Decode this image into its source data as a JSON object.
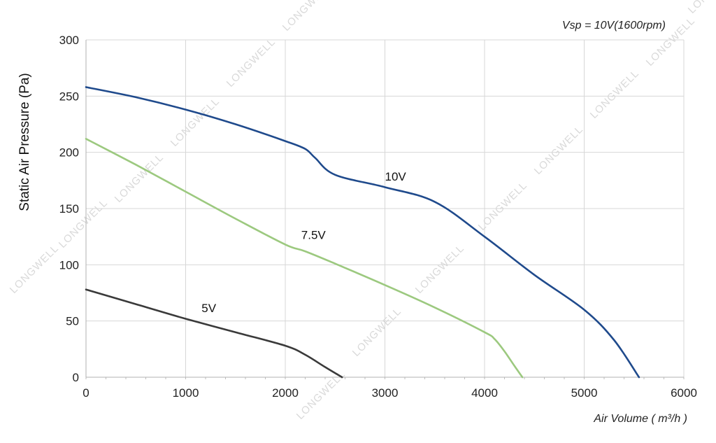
{
  "chart_data": {
    "type": "line",
    "annotation": "Vsp = 10V(1600rpm)",
    "xlabel": "Air Volume ( m³/h )",
    "ylabel": "Static Air Pressure  (Pa)",
    "xlim": [
      0,
      6000
    ],
    "ylim": [
      0,
      300
    ],
    "xticks": [
      0,
      1000,
      2000,
      3000,
      4000,
      5000,
      6000
    ],
    "yticks": [
      0,
      50,
      100,
      150,
      200,
      250,
      300
    ],
    "grid": true,
    "watermark": "LONGWELL",
    "series": [
      {
        "name": "10V",
        "color": "#1f4a8c",
        "x": [
          0,
          500,
          1000,
          1500,
          2000,
          2200,
          2300,
          2500,
          3000,
          3500,
          4000,
          4500,
          5000,
          5300,
          5550
        ],
        "y": [
          258,
          249,
          238,
          225,
          210,
          203,
          195,
          180,
          169,
          156,
          125,
          91,
          60,
          33,
          0
        ]
      },
      {
        "name": "7.5V",
        "color": "#9cc97f",
        "x": [
          0,
          500,
          1000,
          1500,
          2000,
          2200,
          2500,
          3000,
          3500,
          4000,
          4100,
          4200,
          4300,
          4380
        ],
        "y": [
          212,
          189,
          165,
          141,
          118,
          112,
          101,
          82,
          62,
          40,
          34,
          23,
          10,
          0
        ]
      },
      {
        "name": "5V",
        "color": "#3a3a3a",
        "x": [
          0,
          500,
          1000,
          1500,
          2000,
          2200,
          2400,
          2570
        ],
        "y": [
          78,
          65,
          52,
          40,
          28,
          20,
          9,
          0
        ]
      }
    ],
    "label_positions": [
      {
        "series": "10V",
        "x": 3000,
        "y": 175
      },
      {
        "series": "7.5V",
        "x": 2160,
        "y": 123
      },
      {
        "series": "5V",
        "x": 1160,
        "y": 58
      }
    ]
  }
}
